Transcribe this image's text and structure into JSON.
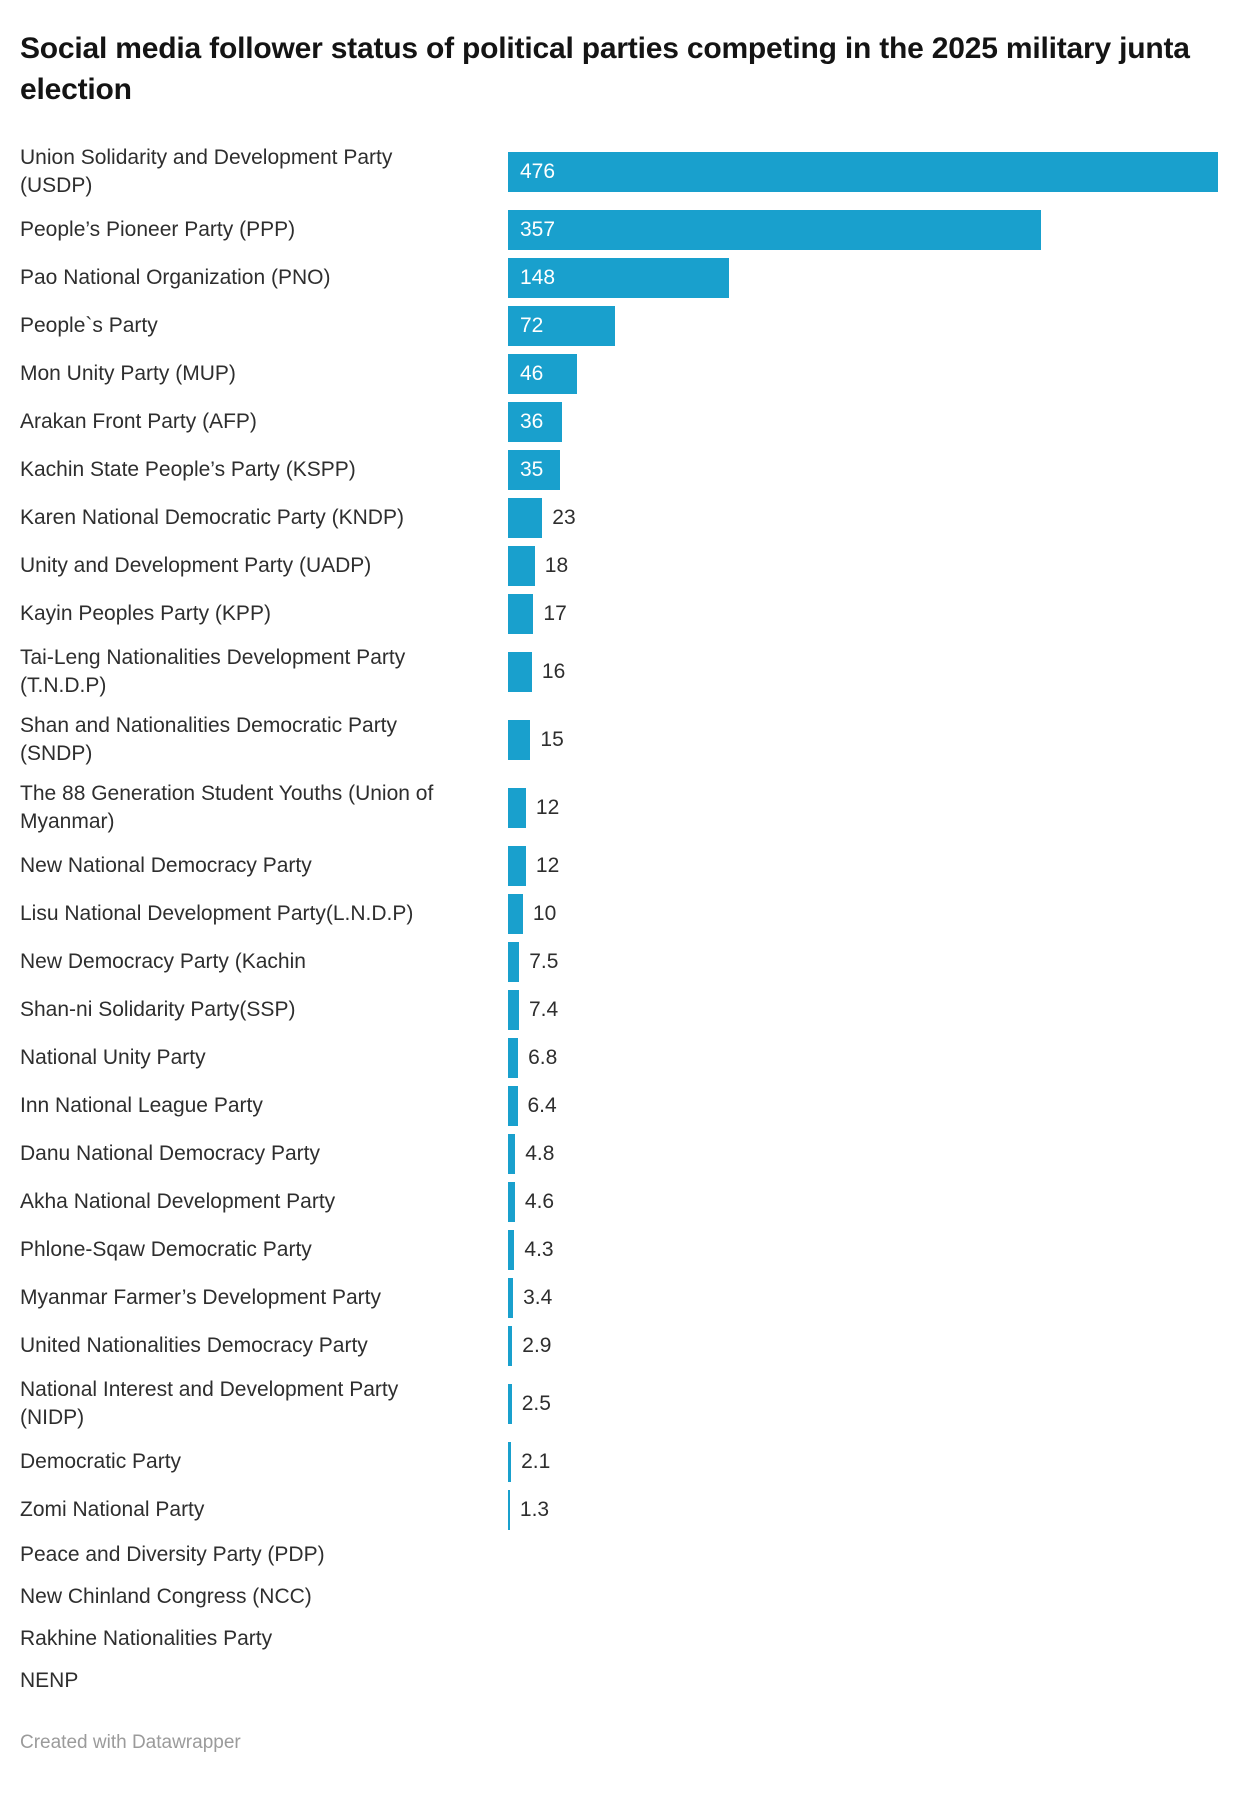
{
  "chart_data": {
    "type": "bar",
    "orientation": "horizontal",
    "title": "Social media follower status of political parties competing in the 2025 military junta election",
    "xlabel": "",
    "ylabel": "",
    "xlim": [
      0,
      476
    ],
    "grid": false,
    "legend": "none",
    "bar_color": "#19a0cd",
    "categories": [
      "Union Solidarity and Development Party (USDP)",
      "People’s Pioneer Party (PPP)",
      "Pao National Organization (PNO)",
      "People`s Party",
      "Mon Unity Party (MUP)",
      "Arakan Front Party (AFP)",
      "Kachin State People’s Party (KSPP)",
      "Karen National Democratic Party (KNDP)",
      "Unity and Development Party (UADP)",
      "Kayin Peoples Party (KPP)",
      "Tai-Leng Nationalities Development Party (T.N.D.P)",
      "Shan and Nationalities Democratic Party (SNDP)",
      "The 88 Generation Student Youths (Union of Myanmar)",
      "New National Democracy Party",
      "Lisu National Development Party(L.N.D.P)",
      "New Democracy Party (Kachin",
      "Shan-ni Solidarity Party(SSP)",
      "National Unity Party",
      "Inn National League Party",
      "Danu National Democracy Party",
      "Akha National Development Party",
      "Phlone-Sqaw Democratic Party",
      "Myanmar Farmer’s Development Party",
      "United Nationalities Democracy Party",
      "National Interest and Development Party (NIDP)",
      "Democratic Party",
      "Zomi National Party",
      "Peace and Diversity Party (PDP)",
      "New Chinland Congress (NCC)",
      "Rakhine Nationalities Party",
      "NENP"
    ],
    "display_labels": [
      "Union Solidarity and Development Party\n(USDP)",
      "People’s Pioneer Party (PPP)",
      "Pao National Organization (PNO)",
      "People`s Party",
      "Mon Unity Party (MUP)",
      "Arakan Front Party (AFP)",
      "Kachin State People’s Party (KSPP)",
      "Karen National Democratic Party (KNDP)",
      "Unity and Development Party (UADP)",
      "Kayin Peoples Party (KPP)",
      "Tai-Leng Nationalities Development Party\n(T.N.D.P)",
      "Shan and Nationalities Democratic Party\n(SNDP)",
      "The 88 Generation Student Youths (Union of\nMyanmar)",
      "New National Democracy Party",
      "Lisu National Development Party(L.N.D.P)",
      "New Democracy Party (Kachin",
      "Shan-ni Solidarity Party(SSP)",
      "National Unity Party",
      "Inn National League Party",
      "Danu National Democracy Party",
      "Akha National Development Party",
      "Phlone-Sqaw Democratic Party",
      "Myanmar Farmer’s Development Party",
      "United Nationalities Democracy Party",
      "National Interest and Development Party\n(NIDP)",
      "Democratic Party",
      "Zomi National Party",
      "Peace and Diversity Party (PDP)",
      "New Chinland Congress (NCC)",
      "Rakhine Nationalities Party",
      "NENP"
    ],
    "values": [
      476,
      357,
      148,
      72,
      46,
      36,
      35,
      23,
      18,
      17,
      16,
      15,
      12,
      12,
      10,
      7.5,
      7.4,
      6.8,
      6.4,
      4.8,
      4.6,
      4.3,
      3.4,
      2.9,
      2.5,
      2.1,
      1.3,
      null,
      null,
      null,
      null
    ],
    "value_labels": [
      "476",
      "357",
      "148",
      "72",
      "46",
      "36",
      "35",
      "23",
      "18",
      "17",
      "16",
      "15",
      "12",
      "12",
      "10",
      "7.5",
      "7.4",
      "6.8",
      "6.4",
      "4.8",
      "4.6",
      "4.3",
      "3.4",
      "2.9",
      "2.5",
      "2.1",
      "1.3",
      null,
      null,
      null,
      null
    ]
  },
  "footer": {
    "credit": "Created with Datawrapper"
  }
}
